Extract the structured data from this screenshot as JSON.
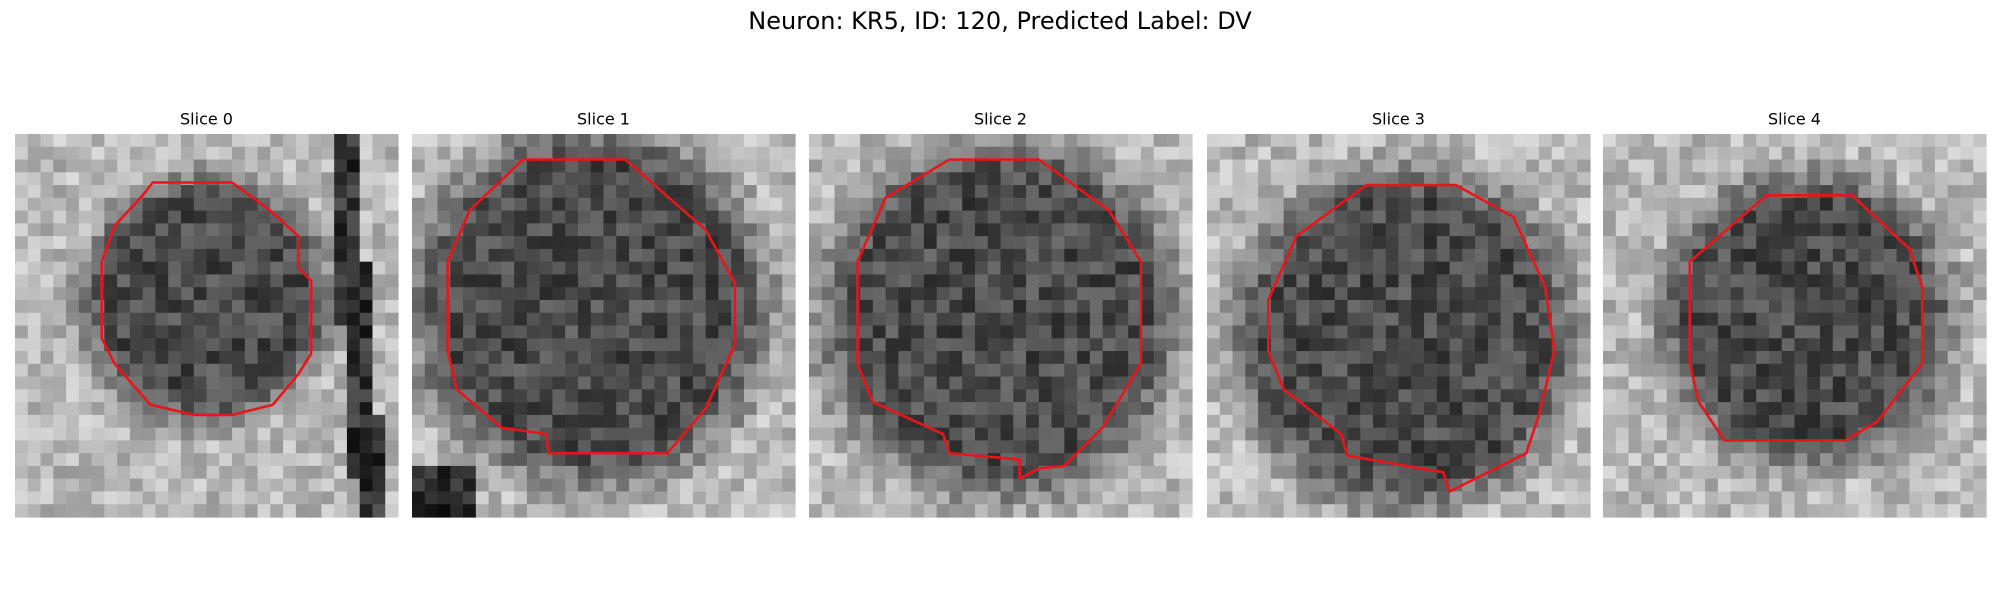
{
  "figure": {
    "title": "Neuron: KR5, ID: 120, Predicted Label: DV",
    "panels": [
      {
        "title": "Slice 0"
      },
      {
        "title": "Slice 1"
      },
      {
        "title": "Slice 2"
      },
      {
        "title": "Slice 3"
      },
      {
        "title": "Slice 4"
      }
    ]
  }
}
